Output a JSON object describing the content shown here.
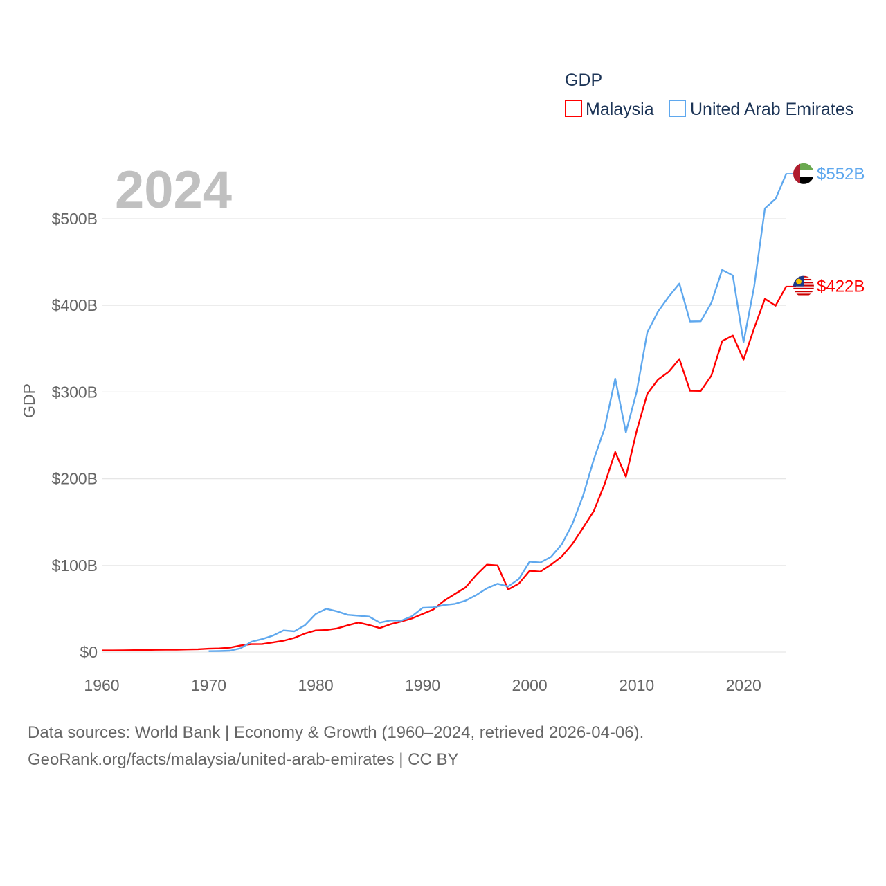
{
  "chart_data": {
    "type": "line",
    "title": "",
    "ylabel": "GDP",
    "xlabel": "",
    "year_watermark": "2024",
    "legend": {
      "title": "GDP",
      "placement": "top-right"
    },
    "xlim": [
      1960,
      2024
    ],
    "ylim": [
      0,
      560
    ],
    "x_ticks": [
      1960,
      1970,
      1980,
      1990,
      2000,
      2010,
      2020
    ],
    "x_tick_labels": [
      "1960",
      "1970",
      "1980",
      "1990",
      "2000",
      "2010",
      "2020"
    ],
    "y_ticks": [
      0,
      100,
      200,
      300,
      400,
      500
    ],
    "y_tick_labels": [
      "$0",
      "$100B",
      "$200B",
      "$300B",
      "$400B",
      "$500B"
    ],
    "grid": true,
    "series": [
      {
        "name": "Malaysia",
        "color": "#ff0000",
        "end_label": "$422B",
        "flag": "malaysia-flag",
        "start_year": 1960,
        "values": [
          1.9,
          1.9,
          2.0,
          2.2,
          2.4,
          2.6,
          2.8,
          2.8,
          3.0,
          3.3,
          3.9,
          4.2,
          5.1,
          7.7,
          9.1,
          9.3,
          11.1,
          13.1,
          16.4,
          21.4,
          25.0,
          25.5,
          27.3,
          30.9,
          34.1,
          31.2,
          27.7,
          32.2,
          35.3,
          38.8,
          44.0,
          49.1,
          59.2,
          66.9,
          74.5,
          88.7,
          100.9,
          100.0,
          72.2,
          79.1,
          93.8,
          92.8,
          100.8,
          110.2,
          124.7,
          143.5,
          162.7,
          193.5,
          230.8,
          202.3,
          255.0,
          297.9,
          314.4,
          323.3,
          338.1,
          301.4,
          301.3,
          319.1,
          358.8,
          365.2,
          337.5,
          373.8,
          407.6,
          399.7,
          422
        ]
      },
      {
        "name": "United Arab Emirates",
        "color": "#5fa8ee",
        "end_label": "$552B",
        "flag": "uae-flag",
        "start_year": 1970,
        "values": [
          1.0,
          1.2,
          1.6,
          4.5,
          12,
          15,
          19,
          25,
          24,
          31,
          44,
          50,
          47,
          43,
          42,
          41,
          34,
          36.6,
          36.3,
          41.4,
          51,
          51.6,
          54.2,
          55.6,
          59.3,
          65.7,
          73.6,
          78.8,
          75.7,
          84.4,
          104.3,
          103.3,
          109.8,
          124.3,
          147.8,
          180.6,
          222.1,
          257.9,
          315.5,
          253.5,
          300.2,
          368.8,
          392.8,
          409.9,
          425.1,
          381.4,
          381.6,
          403.1,
          441.0,
          434.5,
          357.5,
          422,
          512,
          523,
          552
        ]
      }
    ]
  },
  "footer": {
    "line1": "Data sources: World Bank | Economy & Growth (1960–2024, retrieved 2026-04-06).",
    "line2": "GeoRank.org/facts/malaysia/united-arab-emirates | CC BY"
  }
}
